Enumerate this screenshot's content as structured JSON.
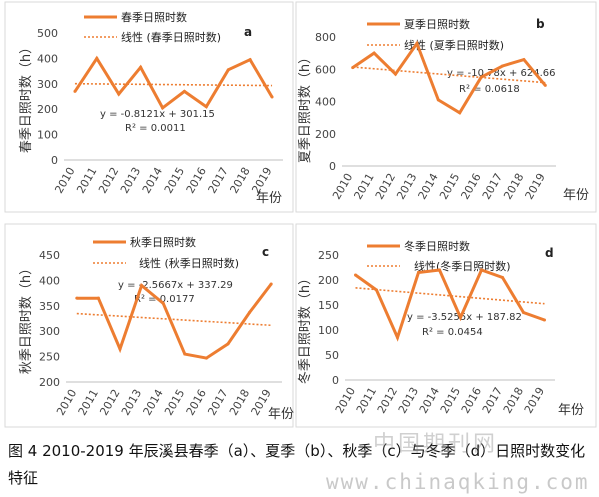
{
  "caption": "图 4 2010-2019 年辰溪县春季（a）、夏季（b）、秋季（c）与冬季（d）日照时数变化特征",
  "watermark": {
    "cn": "中国期刊网",
    "url": "www.chinaqking.com"
  },
  "colors": {
    "series": "#ed7d31",
    "trend": "#ed7d31"
  },
  "chart_data": [
    {
      "id": "a",
      "type": "line",
      "panel_label": "a",
      "ylabel": "春季日照时数（h）",
      "xunit": "年份",
      "categories": [
        "2010",
        "2011",
        "2012",
        "2013",
        "2014",
        "2015",
        "2016",
        "2017",
        "2018",
        "2019"
      ],
      "series": [
        {
          "name": "春季日照时数",
          "values": [
            270,
            400,
            260,
            365,
            205,
            270,
            210,
            355,
            395,
            248
          ]
        }
      ],
      "trend": {
        "name": "线性 (春季日照时数)",
        "slope": -0.8121,
        "intercept": 301.15,
        "equation": "y = -0.8121x + 301.15",
        "r2": "R² = 0.0011"
      },
      "ylim": [
        0,
        500
      ],
      "yticks": [
        0,
        100,
        200,
        300,
        400,
        500
      ],
      "grid": false
    },
    {
      "id": "b",
      "type": "line",
      "panel_label": "b",
      "ylabel": "夏季日照时数（h）",
      "xunit": "年份",
      "categories": [
        "2010",
        "2011",
        "2012",
        "2013",
        "2014",
        "2015",
        "2016",
        "2017",
        "2018",
        "2019"
      ],
      "series": [
        {
          "name": "夏季日照时数",
          "values": [
            610,
            700,
            570,
            760,
            410,
            330,
            550,
            620,
            660,
            500
          ]
        }
      ],
      "trend": {
        "name": "线性 (夏季日照时数)",
        "slope": -10.78,
        "intercept": 624.66,
        "equation": "y = -10.78x + 624.66",
        "r2": "R² = 0.0618"
      },
      "ylim": [
        0,
        800
      ],
      "yticks": [
        0,
        200,
        400,
        600,
        800
      ],
      "grid": false
    },
    {
      "id": "c",
      "type": "line",
      "panel_label": "c",
      "ylabel": "秋季日照时数（h）",
      "xunit": "年份",
      "categories": [
        "2010",
        "2011",
        "2012",
        "2013",
        "2014",
        "2015",
        "2016",
        "2017",
        "2018",
        "2019"
      ],
      "series": [
        {
          "name": "秋季日照时数",
          "values": [
            365,
            365,
            265,
            390,
            355,
            255,
            247,
            275,
            337,
            393
          ]
        }
      ],
      "trend": {
        "name": "线性 (秋季日照时数)",
        "slope": -2.5667,
        "intercept": 337.29,
        "equation": "y = -2.5667x + 337.29",
        "r2": "R² = 0.0177"
      },
      "ylim": [
        200,
        450
      ],
      "yticks": [
        200,
        250,
        300,
        350,
        400,
        450
      ],
      "grid": false
    },
    {
      "id": "d",
      "type": "line",
      "panel_label": "d",
      "ylabel": "冬季日照时数（h）",
      "xunit": "年份",
      "categories": [
        "2010",
        "2011",
        "2012",
        "2013",
        "2014",
        "2015",
        "2016",
        "2017",
        "2018",
        "2019"
      ],
      "series": [
        {
          "name": "冬季日照时数",
          "values": [
            210,
            180,
            85,
            215,
            220,
            125,
            220,
            205,
            135,
            120
          ]
        }
      ],
      "trend": {
        "name": "线性(冬季日照时数)",
        "slope": -3.5255,
        "intercept": 187.82,
        "equation": "y = -3.5255x + 187.82",
        "r2": "R² = 0.0454"
      },
      "ylim": [
        0,
        250
      ],
      "yticks": [
        0,
        50,
        100,
        150,
        200,
        250
      ],
      "grid": false
    }
  ]
}
